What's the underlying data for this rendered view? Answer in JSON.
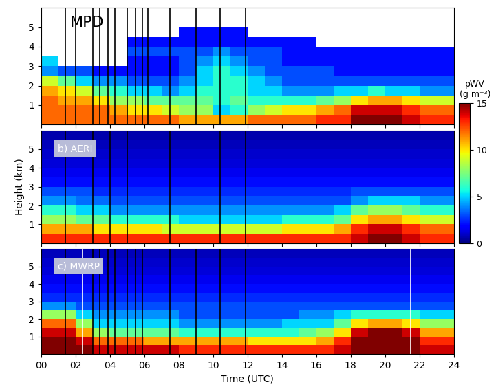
{
  "chart_data": [
    {
      "type": "heatmap",
      "title": "MPD",
      "xlim": [
        0,
        24
      ],
      "xticks": [
        {
          "value": 0,
          "label": "00"
        },
        {
          "value": 2,
          "label": "02"
        },
        {
          "value": 4,
          "label": "04"
        },
        {
          "value": 6,
          "label": "06"
        },
        {
          "value": 8,
          "label": "08"
        },
        {
          "value": 10,
          "label": "10"
        },
        {
          "value": 12,
          "label": "12"
        },
        {
          "value": 14,
          "label": "14"
        },
        {
          "value": 16,
          "label": "16"
        },
        {
          "value": 18,
          "label": "18"
        },
        {
          "value": 20,
          "label": "20"
        },
        {
          "value": 22,
          "label": "22"
        },
        {
          "value": 24,
          "label": "24"
        }
      ],
      "ylim": [
        0,
        6
      ],
      "yticks": [
        1,
        2,
        3,
        4,
        5
      ],
      "tick_labels": "y",
      "x_edges": [
        0,
        1,
        2,
        3,
        4,
        5,
        6,
        7,
        8,
        9,
        10,
        11,
        12,
        13,
        14,
        15,
        16,
        17,
        18,
        19,
        20,
        21,
        22,
        23,
        24
      ],
      "y_edges": [
        0,
        0.5,
        1,
        1.5,
        2,
        2.5,
        3,
        3.5,
        4,
        4.5,
        5,
        5.5,
        6
      ],
      "cells": [
        [
          12,
          12,
          12,
          12,
          12,
          12,
          12,
          12,
          11,
          11,
          11,
          11,
          12,
          12,
          12,
          12,
          13,
          13,
          15,
          15,
          15,
          14,
          13,
          13
        ],
        [
          12,
          12,
          12,
          12,
          11,
          10,
          10,
          9,
          8,
          8,
          5,
          6,
          8,
          9,
          10,
          10,
          11,
          12,
          14,
          14,
          14,
          13,
          12,
          12
        ],
        [
          12,
          11,
          11,
          10,
          8,
          8,
          7,
          7,
          7,
          7,
          6,
          7,
          6,
          6,
          6,
          6,
          7,
          8,
          10,
          11,
          11,
          10,
          9,
          9
        ],
        [
          11,
          10,
          9,
          7,
          6,
          5,
          5,
          4,
          5,
          6,
          6,
          6,
          5,
          5,
          4,
          4,
          4,
          5,
          5,
          6,
          5,
          5,
          4,
          4
        ],
        [
          9,
          7,
          5,
          4,
          4,
          3,
          3,
          3,
          4,
          5,
          6,
          6,
          5,
          4,
          3,
          3,
          3,
          3,
          3,
          3,
          3,
          3,
          3,
          3
        ],
        [
          4,
          3,
          3,
          2,
          2,
          2,
          2,
          2,
          3,
          5,
          6,
          5,
          4,
          3,
          3,
          3,
          3,
          2,
          2,
          2,
          2,
          2,
          2,
          2
        ],
        [
          5,
          null,
          null,
          null,
          null,
          2,
          2,
          2,
          3,
          4,
          5,
          4,
          3,
          3,
          2,
          2,
          2,
          2,
          2,
          2,
          2,
          2,
          2,
          2
        ],
        [
          null,
          null,
          null,
          null,
          null,
          3,
          3,
          3,
          3,
          3,
          4,
          3,
          3,
          3,
          2,
          2,
          2,
          2,
          2,
          2,
          2,
          2,
          2,
          2
        ],
        [
          null,
          null,
          null,
          null,
          null,
          2,
          2,
          2,
          2,
          2,
          2,
          2,
          2,
          2,
          2,
          2,
          null,
          null,
          null,
          null,
          null,
          null,
          null,
          null
        ],
        [
          null,
          null,
          null,
          null,
          null,
          null,
          null,
          null,
          2,
          2,
          2,
          2,
          null,
          null,
          null,
          null,
          null,
          null,
          null,
          null,
          null,
          null,
          null,
          null
        ],
        [
          null,
          null,
          null,
          null,
          null,
          null,
          null,
          null,
          null,
          null,
          null,
          null,
          null,
          null,
          null,
          null,
          null,
          null,
          null,
          null,
          null,
          null,
          null,
          null
        ],
        [
          null,
          null,
          null,
          null,
          null,
          null,
          null,
          null,
          null,
          null,
          null,
          null,
          null,
          null,
          null,
          null,
          null,
          null,
          null,
          null,
          null,
          null,
          null,
          null
        ]
      ],
      "vertical_lines": [
        {
          "color": "black",
          "times": [
            1.4,
            2.0,
            3.0,
            3.4,
            3.9,
            4.3,
            5.0,
            5.5,
            5.9,
            6.2,
            7.5,
            9.0,
            10.4,
            11.9
          ]
        }
      ]
    },
    {
      "type": "heatmap",
      "title": "b) AERI",
      "y_label": "Height (km)",
      "xlim": [
        0,
        24
      ],
      "xticks": [
        {
          "value": 0,
          "label": "00"
        },
        {
          "value": 2,
          "label": "02"
        },
        {
          "value": 4,
          "label": "04"
        },
        {
          "value": 6,
          "label": "06"
        },
        {
          "value": 8,
          "label": "08"
        },
        {
          "value": 10,
          "label": "10"
        },
        {
          "value": 12,
          "label": "12"
        },
        {
          "value": 14,
          "label": "14"
        },
        {
          "value": 16,
          "label": "16"
        },
        {
          "value": 18,
          "label": "18"
        },
        {
          "value": 20,
          "label": "20"
        },
        {
          "value": 22,
          "label": "22"
        },
        {
          "value": 24,
          "label": "24"
        }
      ],
      "ylim": [
        0,
        6
      ],
      "yticks": [
        1,
        2,
        3,
        4,
        5
      ],
      "tick_labels": "y",
      "x_edges": [
        0,
        1,
        2,
        3,
        4,
        5,
        6,
        7,
        8,
        9,
        10,
        11,
        12,
        13,
        14,
        15,
        16,
        17,
        18,
        19,
        20,
        21,
        22,
        23,
        24
      ],
      "y_edges": [
        0,
        0.5,
        1,
        1.5,
        2,
        2.5,
        3,
        3.5,
        4,
        4.5,
        5,
        5.5,
        6
      ],
      "cells": [
        [
          13,
          13,
          13,
          13,
          13,
          13,
          13,
          13,
          13,
          13,
          13,
          13,
          13,
          13,
          13,
          13,
          13,
          13,
          14,
          15,
          15,
          14,
          13,
          13
        ],
        [
          11,
          11,
          11,
          10,
          10,
          10,
          10,
          9,
          9,
          9,
          9,
          9,
          9,
          9,
          10,
          10,
          10,
          11,
          13,
          14,
          14,
          13,
          12,
          12
        ],
        [
          8,
          8,
          7,
          7,
          6,
          6,
          6,
          6,
          5,
          5,
          5,
          5,
          5,
          5,
          6,
          6,
          6,
          7,
          10,
          11,
          11,
          10,
          9,
          9
        ],
        [
          6,
          6,
          5,
          5,
          4,
          4,
          4,
          4,
          4,
          4,
          4,
          4,
          4,
          4,
          4,
          4,
          4,
          5,
          7,
          8,
          8,
          7,
          6,
          6
        ],
        [
          4,
          4,
          3.5,
          3.5,
          3,
          3,
          3,
          3,
          3,
          3,
          3,
          3,
          3,
          3,
          3,
          3,
          3,
          3,
          4,
          5,
          5,
          5,
          4,
          4
        ],
        [
          3,
          3,
          3,
          2.5,
          2.5,
          2.5,
          2.5,
          2.5,
          2.5,
          2.5,
          2.5,
          2.5,
          2.5,
          2.5,
          2.5,
          2.5,
          2.5,
          2.5,
          3,
          3,
          3,
          3,
          3,
          3
        ],
        [
          2,
          2,
          2,
          2,
          2,
          2,
          2,
          2,
          2,
          2,
          2,
          2,
          2,
          2,
          2,
          2,
          2,
          2,
          2,
          2,
          2,
          2,
          2,
          2
        ],
        [
          1.5,
          1.5,
          1.5,
          1.5,
          1.5,
          1.5,
          1.5,
          1.5,
          1.5,
          1.5,
          1.5,
          1.5,
          1.5,
          1.5,
          1.5,
          1.5,
          1.5,
          1.5,
          1.5,
          1.5,
          1.5,
          1.5,
          1.5,
          1.5
        ],
        [
          1.2,
          1.2,
          1.2,
          1.2,
          1.2,
          1.2,
          1.2,
          1.2,
          1.2,
          1.2,
          1.2,
          1.2,
          1.2,
          1.2,
          1.2,
          1.2,
          1.2,
          1.2,
          1.2,
          1.2,
          1.2,
          1.2,
          1.2,
          1.2
        ],
        [
          1,
          1,
          1,
          1,
          1,
          1,
          1,
          1,
          1,
          1,
          1,
          1,
          1,
          1,
          1,
          1,
          1,
          1,
          1,
          1,
          1,
          1,
          1,
          1
        ],
        [
          0.8,
          0.8,
          0.8,
          0.8,
          0.8,
          0.8,
          0.8,
          0.8,
          0.8,
          0.8,
          0.8,
          0.8,
          0.8,
          0.8,
          0.8,
          0.8,
          0.8,
          0.8,
          0.8,
          0.8,
          0.8,
          0.8,
          0.8,
          0.8
        ],
        [
          0.6,
          0.6,
          0.6,
          0.6,
          0.6,
          0.6,
          0.6,
          0.6,
          0.6,
          0.6,
          0.6,
          0.6,
          0.6,
          0.6,
          0.6,
          0.6,
          0.6,
          0.6,
          0.6,
          0.6,
          0.6,
          0.6,
          0.6,
          0.6
        ]
      ],
      "vertical_lines": [
        {
          "color": "black",
          "times": [
            1.4,
            3.0,
            4.0,
            5.0,
            7.5,
            10.4,
            11.9
          ]
        }
      ],
      "colorbar": {
        "range": [
          0,
          15
        ],
        "ticks": [
          0,
          5,
          10,
          15
        ],
        "label": [
          "ρWV",
          "(g m⁻³)"
        ]
      }
    },
    {
      "type": "heatmap",
      "title": "c) MWRP",
      "x_label": "Time (UTC)",
      "xlim": [
        0,
        24
      ],
      "xticks": [
        {
          "value": 0,
          "label": "00"
        },
        {
          "value": 2,
          "label": "02"
        },
        {
          "value": 4,
          "label": "04"
        },
        {
          "value": 6,
          "label": "06"
        },
        {
          "value": 8,
          "label": "08"
        },
        {
          "value": 10,
          "label": "10"
        },
        {
          "value": 12,
          "label": "12"
        },
        {
          "value": 14,
          "label": "14"
        },
        {
          "value": 16,
          "label": "16"
        },
        {
          "value": 18,
          "label": "18"
        },
        {
          "value": 20,
          "label": "20"
        },
        {
          "value": 22,
          "label": "22"
        },
        {
          "value": 24,
          "label": "24"
        }
      ],
      "ylim": [
        0,
        6
      ],
      "yticks": [
        1,
        2,
        3,
        4,
        5
      ],
      "x_edges": [
        0,
        1,
        2,
        3,
        4,
        5,
        6,
        7,
        8,
        9,
        10,
        11,
        12,
        13,
        14,
        15,
        16,
        17,
        18,
        19,
        20,
        21,
        22,
        23,
        24
      ],
      "y_edges": [
        0,
        0.5,
        1,
        1.5,
        2,
        2.5,
        3,
        3.5,
        4,
        4.5,
        5,
        5.5,
        6
      ],
      "cells": [
        [
          15,
          15,
          15,
          14,
          14,
          14,
          14,
          14,
          13,
          13,
          13,
          13,
          13,
          13,
          13,
          13,
          13,
          14,
          15,
          15,
          15,
          15,
          14,
          14
        ],
        [
          15,
          15,
          14,
          12,
          12,
          12,
          11,
          11,
          11,
          11,
          11,
          11,
          10,
          10,
          10,
          10,
          11,
          13,
          15,
          15,
          15,
          15,
          13,
          13
        ],
        [
          14,
          14,
          11,
          8,
          7,
          7,
          7,
          7,
          6,
          6,
          6,
          6,
          6,
          6,
          6,
          7,
          8,
          10,
          14,
          15,
          15,
          14,
          11,
          11
        ],
        [
          12,
          12,
          8,
          5,
          5,
          5,
          5,
          5,
          4,
          4,
          4,
          4,
          4,
          4,
          5,
          5,
          5,
          7,
          10,
          11,
          11,
          10,
          8,
          8
        ],
        [
          8,
          8,
          5,
          4,
          4,
          4,
          4,
          4,
          3,
          3,
          3,
          3,
          3,
          3,
          3,
          4,
          4,
          5,
          6,
          6,
          6,
          6,
          5,
          5
        ],
        [
          4,
          4,
          3,
          3,
          3,
          3,
          3,
          3,
          3,
          3,
          3,
          3,
          3,
          3,
          3,
          3,
          3,
          3,
          3,
          3,
          3,
          3,
          3,
          3
        ],
        [
          2.5,
          2.5,
          2.5,
          2.5,
          2.5,
          2.5,
          2.5,
          2.5,
          2.5,
          2.5,
          2.5,
          2.5,
          2.5,
          2.5,
          2.5,
          2.5,
          2.5,
          2.5,
          2.5,
          2.5,
          2.5,
          2.5,
          2.5,
          2.5
        ],
        [
          2,
          2,
          2,
          2,
          2,
          2,
          2,
          2,
          2,
          2,
          2,
          2,
          2,
          2,
          2,
          2,
          2,
          2,
          2,
          2,
          2,
          2,
          2,
          2
        ],
        [
          1.5,
          1.5,
          1.5,
          1.5,
          1.5,
          1.5,
          1.5,
          1.5,
          1.5,
          1.5,
          1.5,
          1.5,
          1.5,
          1.5,
          1.5,
          1.5,
          1.5,
          1.5,
          1.5,
          1.5,
          1.5,
          1.5,
          1.5,
          1.5
        ],
        [
          1.2,
          1.2,
          1.2,
          1.2,
          1.2,
          1.2,
          1.2,
          1.2,
          1.2,
          1.2,
          1.2,
          1.2,
          1.2,
          1.2,
          1.2,
          1.2,
          1.2,
          1.2,
          1.2,
          1.2,
          1.2,
          1.2,
          1.2,
          1.2
        ],
        [
          1,
          1,
          1,
          1,
          1,
          1,
          1,
          1,
          1,
          1,
          1,
          1,
          1,
          1,
          1,
          1,
          1,
          1,
          1,
          1,
          1,
          1,
          1,
          1
        ],
        [
          0.8,
          0.8,
          0.8,
          0.8,
          0.8,
          0.8,
          0.8,
          0.8,
          0.8,
          0.8,
          0.8,
          0.8,
          0.8,
          0.8,
          0.8,
          0.8,
          0.8,
          0.8,
          0.8,
          0.8,
          0.8,
          0.8,
          0.8,
          0.8
        ]
      ],
      "vertical_lines": [
        {
          "color": "black",
          "times": [
            1.4,
            3.0,
            3.4,
            3.9,
            4.3,
            5.0,
            5.5,
            5.9,
            7.5,
            9.0,
            10.4,
            11.9
          ]
        },
        {
          "color": "white",
          "times": [
            2.4,
            21.5
          ]
        }
      ]
    }
  ]
}
